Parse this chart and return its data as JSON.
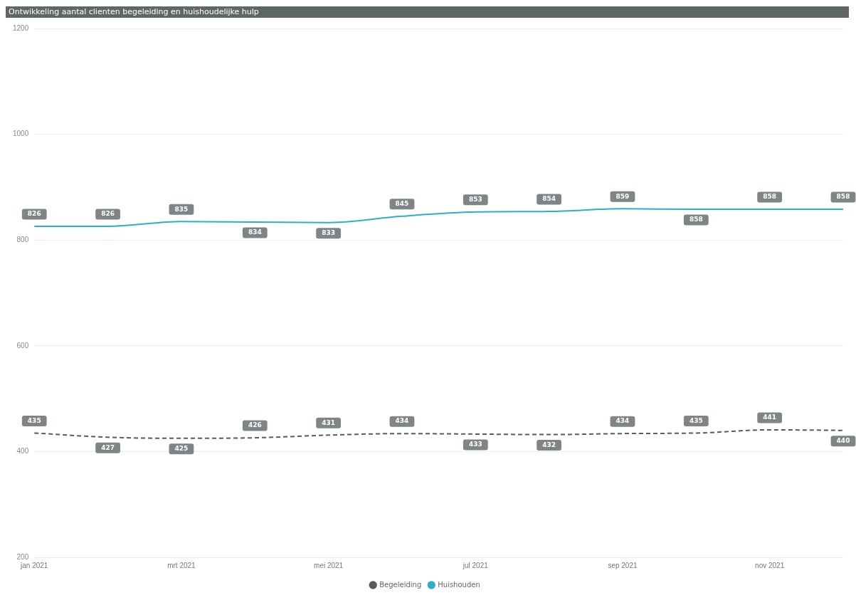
{
  "chart_data": {
    "type": "line",
    "title": "Ontwikkeling aantal clienten begeleiding en huishoudelijke hulp",
    "categories": [
      "jan 2021",
      null,
      "mrt 2021",
      null,
      "mei 2021",
      null,
      "jul 2021",
      null,
      "sep 2021",
      null,
      "nov 2021",
      null
    ],
    "series": [
      {
        "name": "Begeleiding",
        "color": "#5a5a5a",
        "line_style": "dashed",
        "values": [
          435,
          427,
          425,
          426,
          431,
          434,
          433,
          432,
          434,
          435,
          441,
          440
        ]
      },
      {
        "name": "Huishouden",
        "color": "#2ab0c8",
        "line_style": "solid",
        "values": [
          826,
          826,
          835,
          834,
          833,
          845,
          853,
          854,
          859,
          858,
          858,
          858
        ]
      }
    ],
    "ylim": [
      200,
      1200
    ],
    "yticks": [
      200,
      400,
      600,
      800,
      1000,
      1200
    ],
    "grid": "y",
    "legend": "bottom",
    "marker": "none",
    "data_labels": true
  }
}
